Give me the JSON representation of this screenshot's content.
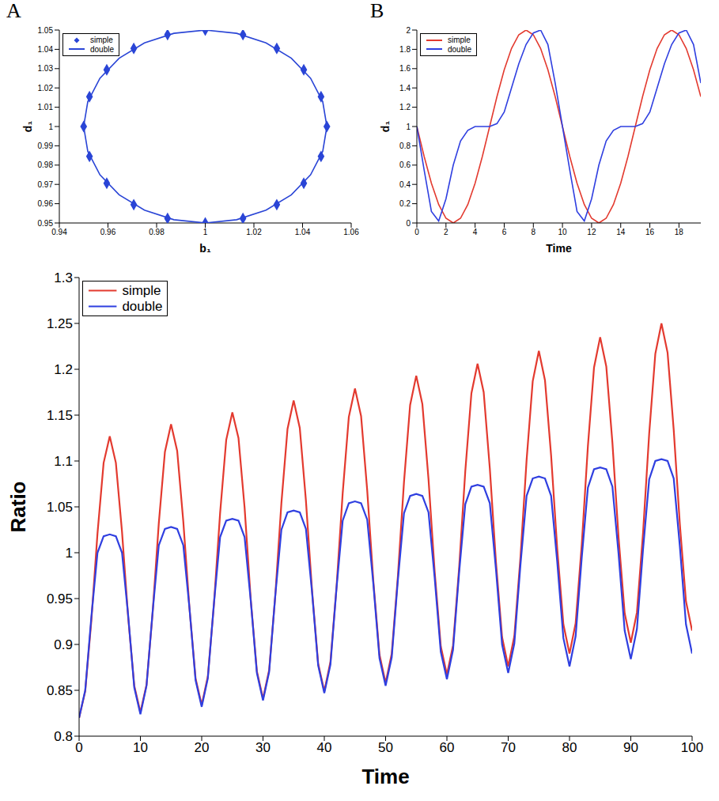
{
  "chart_data": [
    {
      "panel": "A",
      "type": "scatter",
      "xlabel": "b₁",
      "ylabel": "d₁",
      "legend": "upper left",
      "xlim": [
        0.94,
        1.06
      ],
      "xticks": [
        0.94,
        0.96,
        0.98,
        1,
        1.02,
        1.04,
        1.06
      ],
      "ylim": [
        0.95,
        1.05
      ],
      "yticks": [
        0.95,
        0.96,
        0.97,
        0.98,
        0.99,
        1,
        1.01,
        1.02,
        1.03,
        1.04,
        1.05
      ],
      "series": [
        {
          "name": "simple",
          "type": "scatter",
          "marker": "diamond",
          "color": "#2a45d6",
          "x": [
            1.05,
            1.0476,
            1.0405,
            1.0294,
            1.0155,
            1,
            0.9845,
            0.9706,
            0.9595,
            0.9524,
            0.95,
            0.9524,
            0.9595,
            0.9706,
            0.9845,
            1,
            1.0155,
            1.0294,
            1.0405,
            1.0476
          ],
          "values": [
            1,
            1.0155,
            1.0294,
            1.0405,
            1.0476,
            1.05,
            1.0476,
            1.0405,
            1.0294,
            1.0155,
            1,
            0.9845,
            0.9706,
            0.9595,
            0.9524,
            0.95,
            0.9524,
            0.9595,
            0.9706,
            0.9845
          ]
        },
        {
          "name": "double",
          "type": "line",
          "line_style": "solid",
          "color": "#2a45d6",
          "x": [
            1.05,
            1.0483,
            1.0433,
            1.0354,
            1.025,
            1.0129,
            1,
            0.9871,
            0.975,
            0.9646,
            0.9567,
            0.9517,
            0.95,
            0.9517,
            0.9567,
            0.9646,
            0.975,
            0.9871,
            1,
            1.0129,
            1.025,
            1.0354,
            1.0433,
            1.0483,
            1.05
          ],
          "values": [
            1,
            1.0129,
            1.025,
            1.0354,
            1.0433,
            1.0483,
            1.05,
            1.0483,
            1.0433,
            1.0354,
            1.025,
            1.0129,
            1,
            0.9871,
            0.975,
            0.9646,
            0.9567,
            0.9517,
            0.95,
            0.9517,
            0.9567,
            0.9646,
            0.975,
            0.9871,
            1
          ]
        }
      ]
    },
    {
      "panel": "B",
      "type": "line",
      "xlabel": "Time",
      "ylabel": "d₁",
      "legend": "upper left",
      "xlim": [
        0,
        19.5
      ],
      "xticks": [
        0,
        2,
        4,
        6,
        8,
        10,
        12,
        14,
        16,
        18
      ],
      "ylim": [
        0,
        2
      ],
      "yticks": [
        0,
        0.2,
        0.4,
        0.6,
        0.8,
        1,
        1.2,
        1.4,
        1.6,
        1.8,
        2
      ],
      "x": [
        0,
        0.5,
        1,
        1.5,
        2,
        2.5,
        3,
        3.5,
        4,
        4.5,
        5,
        5.5,
        6,
        6.5,
        7,
        7.5,
        8,
        8.5,
        9,
        9.5,
        10,
        10.5,
        11,
        11.5,
        12,
        12.5,
        13,
        13.5,
        14,
        14.5,
        15,
        15.5,
        16,
        16.5,
        17,
        17.5,
        18,
        18.5,
        19,
        19.5
      ],
      "series": [
        {
          "name": "simple",
          "color": "#e33a2f",
          "line_style": "solid",
          "values": [
            1,
            0.691,
            0.412,
            0.191,
            0.049,
            0,
            0.049,
            0.191,
            0.412,
            0.691,
            1,
            1.309,
            1.588,
            1.809,
            1.951,
            2,
            1.951,
            1.809,
            1.588,
            1.309,
            1,
            0.691,
            0.412,
            0.191,
            0.049,
            0,
            0.049,
            0.191,
            0.412,
            0.691,
            1,
            1.309,
            1.588,
            1.809,
            1.951,
            2,
            1.951,
            1.809,
            1.588,
            1.309
          ]
        },
        {
          "name": "double",
          "color": "#2f3fe0",
          "line_style": "solid",
          "values": [
            1,
            0.55,
            0.12,
            0.02,
            0.25,
            0.6,
            0.85,
            0.96,
            1,
            1,
            1,
            1.03,
            1.15,
            1.4,
            1.65,
            1.85,
            1.97,
            2,
            1.85,
            1.45,
            1,
            0.55,
            0.12,
            0.02,
            0.25,
            0.6,
            0.85,
            0.96,
            1,
            1,
            1,
            1.03,
            1.15,
            1.4,
            1.65,
            1.85,
            1.97,
            2,
            1.85,
            1.45
          ]
        }
      ]
    },
    {
      "type": "line",
      "xlabel": "Time",
      "ylabel": "Ratio",
      "legend": "upper left",
      "xlim": [
        0,
        100
      ],
      "xticks": [
        0,
        10,
        20,
        30,
        40,
        50,
        60,
        70,
        80,
        90,
        100
      ],
      "ylim": [
        0.8,
        1.3
      ],
      "yticks": [
        0.8,
        0.85,
        0.9,
        0.95,
        1,
        1.05,
        1.1,
        1.15,
        1.2,
        1.25,
        1.3
      ],
      "x": [
        0,
        1,
        2,
        3,
        4,
        5,
        6,
        7,
        8,
        9,
        10,
        11,
        12,
        13,
        14,
        15,
        16,
        17,
        18,
        19,
        20,
        21,
        22,
        23,
        24,
        25,
        26,
        27,
        28,
        29,
        30,
        31,
        32,
        33,
        34,
        35,
        36,
        37,
        38,
        39,
        40,
        41,
        42,
        43,
        44,
        45,
        46,
        47,
        48,
        49,
        50,
        51,
        52,
        53,
        54,
        55,
        56,
        57,
        58,
        59,
        60,
        61,
        62,
        63,
        64,
        65,
        66,
        67,
        68,
        69,
        70,
        71,
        72,
        73,
        74,
        75,
        76,
        77,
        78,
        79,
        80,
        81,
        82,
        83,
        84,
        85,
        86,
        87,
        88,
        89,
        90,
        91,
        92,
        93,
        94,
        95,
        96,
        97,
        98,
        99,
        100
      ],
      "series": [
        {
          "name": "simple",
          "color": "#e33a2f",
          "line_style": "solid",
          "values": [
            0.82,
            0.849,
            0.926,
            1.021,
            1.098,
            1.127,
            1.098,
            1.023,
            0.93,
            0.855,
            0.826,
            0.856,
            0.935,
            1.032,
            1.11,
            1.14,
            1.111,
            1.034,
            0.94,
            0.863,
            0.834,
            0.865,
            0.944,
            1.043,
            1.123,
            1.153,
            1.125,
            1.049,
            0.949,
            0.871,
            0.841,
            0.872,
            0.953,
            1.054,
            1.135,
            1.166,
            1.136,
            1.057,
            0.959,
            0.879,
            0.849,
            0.881,
            0.963,
            1.065,
            1.148,
            1.179,
            1.149,
            1.068,
            0.969,
            0.889,
            0.858,
            0.89,
            0.974,
            1.077,
            1.161,
            1.193,
            1.162,
            1.08,
            0.98,
            0.898,
            0.867,
            0.899,
            0.984,
            1.089,
            1.174,
            1.206,
            1.175,
            1.092,
            0.99,
            0.908,
            0.876,
            0.909,
            0.995,
            1.101,
            1.187,
            1.22,
            1.188,
            1.106,
            1.004,
            0.922,
            0.89,
            0.923,
            1.009,
            1.116,
            1.202,
            1.235,
            1.203,
            1.12,
            1.017,
            0.934,
            0.902,
            0.935,
            1.022,
            1.13,
            1.217,
            1.25,
            1.218,
            1.134,
            1.031,
            0.947,
            0.915
          ]
        },
        {
          "name": "double",
          "color": "#2f3fe0",
          "line_style": "solid",
          "values": [
            0.82,
            0.85,
            0.93,
            1.0,
            1.018,
            1.02,
            1.018,
            1.0,
            0.932,
            0.853,
            0.824,
            0.855,
            0.936,
            1.008,
            1.026,
            1.028,
            1.026,
            1.008,
            0.94,
            0.861,
            0.832,
            0.863,
            0.945,
            1.017,
            1.035,
            1.037,
            1.035,
            1.017,
            0.948,
            0.869,
            0.839,
            0.87,
            0.953,
            1.025,
            1.044,
            1.046,
            1.044,
            1.026,
            0.957,
            0.877,
            0.847,
            0.878,
            0.962,
            1.035,
            1.054,
            1.056,
            1.054,
            1.036,
            0.966,
            0.885,
            0.855,
            0.886,
            0.97,
            1.043,
            1.062,
            1.064,
            1.062,
            1.044,
            0.973,
            0.892,
            0.862,
            0.894,
            0.979,
            1.053,
            1.072,
            1.074,
            1.072,
            1.054,
            0.982,
            0.9,
            0.869,
            0.901,
            0.987,
            1.062,
            1.081,
            1.083,
            1.081,
            1.062,
            0.99,
            0.907,
            0.876,
            0.909,
            0.995,
            1.071,
            1.091,
            1.093,
            1.091,
            1.072,
            0.999,
            0.915,
            0.884,
            0.917,
            1.004,
            1.08,
            1.1,
            1.102,
            1.1,
            1.081,
            1.007,
            0.922,
            0.89
          ]
        }
      ]
    }
  ]
}
